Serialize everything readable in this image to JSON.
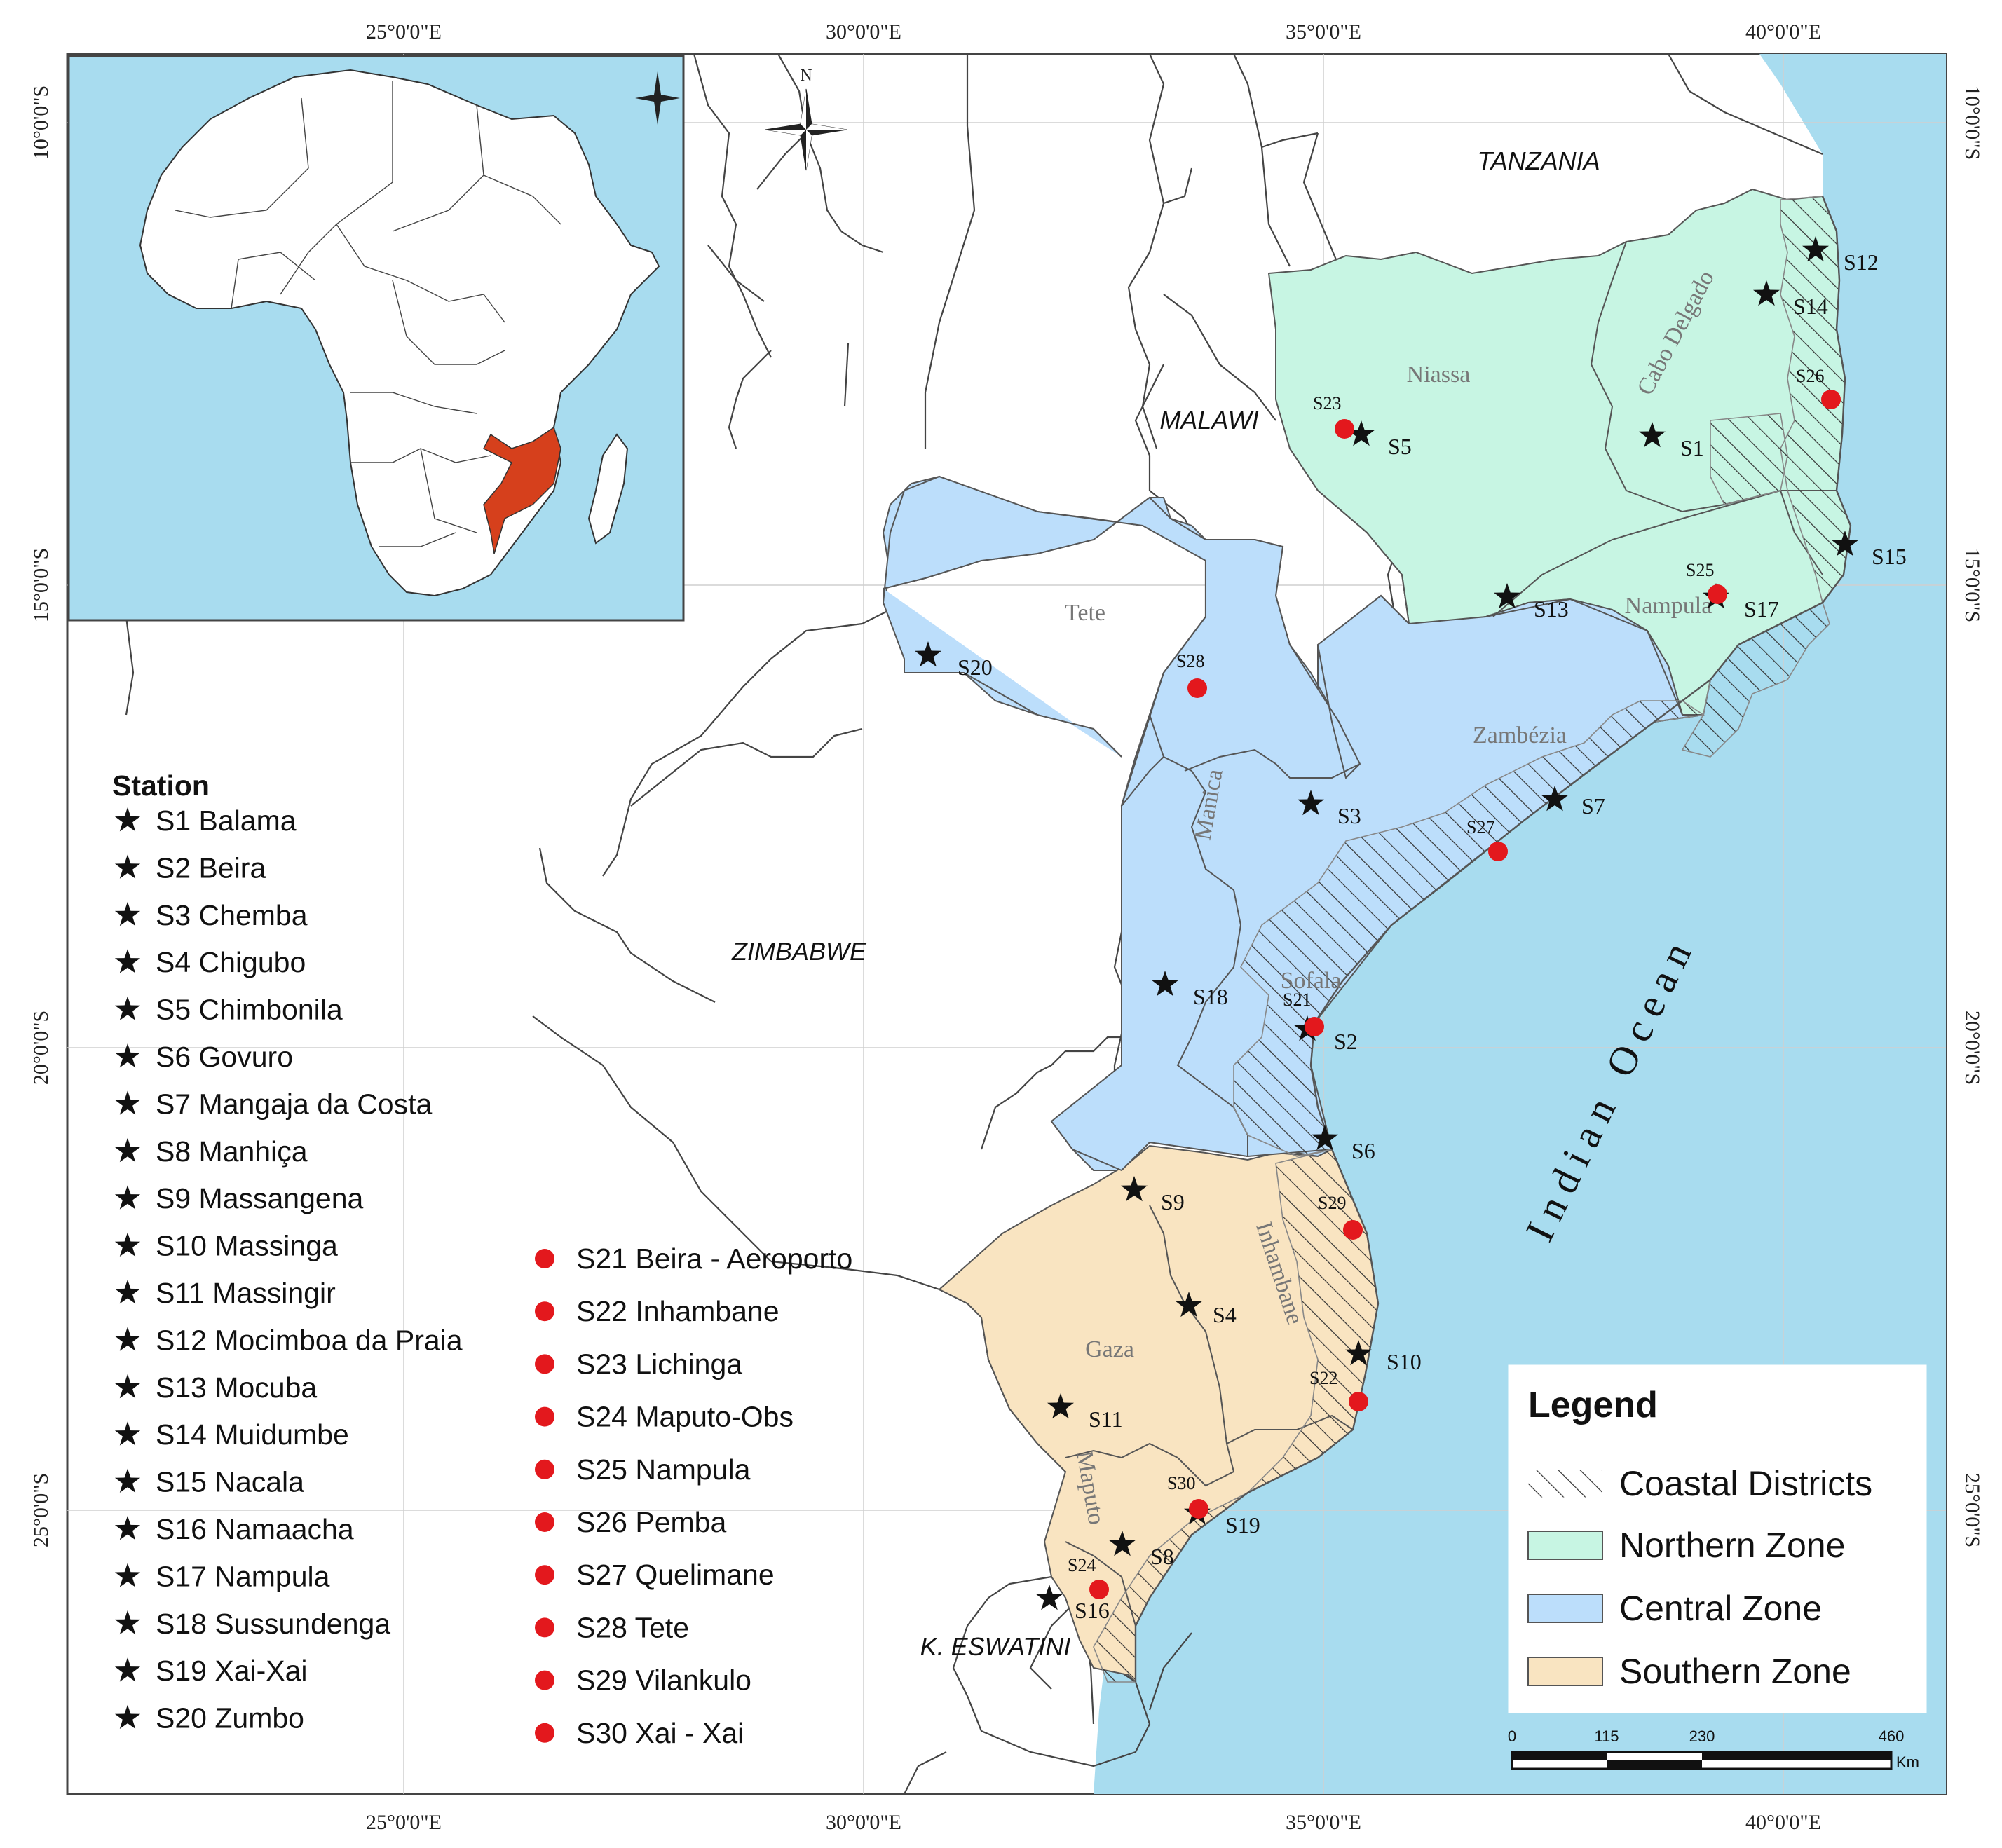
{
  "colors": {
    "ocean": "#a8dcef",
    "land": "#ffffff",
    "northern_zone": "#c7f5e3",
    "central_zone": "#bcdefb",
    "southern_zone": "#f9e4c1",
    "mozambique_inset": "#d6401c",
    "station_star": "#111111",
    "station_dot": "#e3181d"
  },
  "icons": {
    "north_arrow": "north-arrow-icon",
    "inset_north_arrow": "north-arrow-icon"
  },
  "north_label": "N",
  "coordinates": {
    "top": [
      "25°0'0\"E",
      "30°0'0\"E",
      "35°0'0\"E",
      "40°0'0\"E"
    ],
    "bottom": [
      "25°0'0\"E",
      "30°0'0\"E",
      "35°0'0\"E",
      "40°0'0\"E"
    ],
    "left": [
      "10°0'0\"S",
      "15°0'0\"S",
      "20°0'0\"S",
      "25°0'0\"S"
    ],
    "right": [
      "10°0'0\"S",
      "15°0'0\"S",
      "20°0'0\"S",
      "25°0'0\"S"
    ]
  },
  "countries": [
    "TANZANIA",
    "MALAWI",
    "ZIMBABWE",
    "K. ESWATINI"
  ],
  "provinces": [
    "Niassa",
    "Cabo Delgado",
    "Nampula",
    "Tete",
    "Zambézia",
    "Manica",
    "Sofala",
    "Inhambane",
    "Gaza",
    "Maputo"
  ],
  "ocean_label": "Indian Ocean",
  "map_stations": [
    {
      "id": "S1",
      "type": "star"
    },
    {
      "id": "S2",
      "type": "star"
    },
    {
      "id": "S3",
      "type": "star"
    },
    {
      "id": "S4",
      "type": "star"
    },
    {
      "id": "S5",
      "type": "star"
    },
    {
      "id": "S6",
      "type": "star"
    },
    {
      "id": "S7",
      "type": "star"
    },
    {
      "id": "S8",
      "type": "star"
    },
    {
      "id": "S9",
      "type": "star"
    },
    {
      "id": "S10",
      "type": "star"
    },
    {
      "id": "S11",
      "type": "star"
    },
    {
      "id": "S12",
      "type": "star"
    },
    {
      "id": "S13",
      "type": "star"
    },
    {
      "id": "S14",
      "type": "star"
    },
    {
      "id": "S15",
      "type": "star"
    },
    {
      "id": "S16",
      "type": "star"
    },
    {
      "id": "S17",
      "type": "star"
    },
    {
      "id": "S18",
      "type": "star"
    },
    {
      "id": "S19",
      "type": "star"
    },
    {
      "id": "S20",
      "type": "star"
    },
    {
      "id": "S21",
      "type": "dot"
    },
    {
      "id": "S22",
      "type": "dot"
    },
    {
      "id": "S23",
      "type": "dot"
    },
    {
      "id": "S24",
      "type": "dot"
    },
    {
      "id": "S25",
      "type": "dot"
    },
    {
      "id": "S26",
      "type": "dot"
    },
    {
      "id": "S27",
      "type": "dot"
    },
    {
      "id": "S28",
      "type": "dot"
    },
    {
      "id": "S29",
      "type": "dot"
    },
    {
      "id": "S30",
      "type": "dot"
    }
  ],
  "station_list": {
    "title": "Station",
    "stars": [
      "S1 Balama",
      "S2 Beira",
      "S3 Chemba",
      "S4 Chigubo",
      "S5 Chimbonila",
      "S6 Govuro",
      "S7 Mangaja da Costa",
      "S8 Manhiça",
      "S9 Massangena",
      "S10 Massinga",
      "S11 Massingir",
      "S12 Mocimboa da Praia",
      "S13 Mocuba",
      "S14 Muidumbe",
      "S15 Nacala",
      "S16 Namaacha",
      "S17 Nampula",
      "S18 Sussundenga",
      "S19 Xai-Xai",
      "S20 Zumbo"
    ],
    "dots": [
      "S21 Beira - Aeroporto",
      "S22 Inhambane",
      "S23 Lichinga",
      "S24 Maputo-Obs",
      "S25 Nampula",
      "S26 Pemba",
      "S27 Quelimane",
      "S28 Tete",
      "S29 Vilankulo",
      "S30 Xai - Xai"
    ]
  },
  "legend": {
    "title": "Legend",
    "items": [
      "Coastal Districts",
      "Northern Zone",
      "Central Zone",
      "Southern Zone"
    ]
  },
  "scale_bar": {
    "ticks": [
      "0",
      "115",
      "230",
      "460"
    ],
    "unit": "Km"
  }
}
